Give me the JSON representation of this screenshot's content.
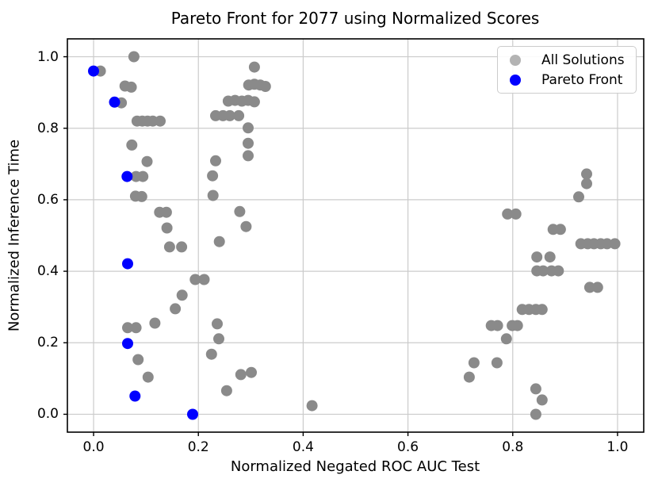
{
  "chart_data": {
    "type": "scatter",
    "title": "Pareto Front for 2077 using Normalized Scores",
    "xlabel": "Normalized Negated ROC AUC Test",
    "ylabel": "Normalized Inference Time",
    "xlim": [
      -0.05,
      1.05
    ],
    "ylim": [
      -0.05,
      1.05
    ],
    "xticks": [
      0.0,
      0.2,
      0.4,
      0.6,
      0.8,
      1.0
    ],
    "yticks": [
      0.0,
      0.2,
      0.4,
      0.6,
      0.8,
      1.0
    ],
    "grid": true,
    "grid_color": "#cbcbcb",
    "spine_color": "#000000",
    "background": "#ffffff",
    "marker_radius_px": 7,
    "legend": {
      "position": "upper right",
      "items": [
        {
          "label": "All Solutions",
          "marker_color": "#b3b3b3"
        },
        {
          "label": "Pareto Front",
          "marker_color": "#0000ff"
        }
      ]
    },
    "series": [
      {
        "name": "All Solutions",
        "color": "#8a8a8a",
        "points": [
          [
            0.077,
            1.0
          ],
          [
            0.013,
            0.96
          ],
          [
            0.06,
            0.918
          ],
          [
            0.072,
            0.915
          ],
          [
            0.053,
            0.871
          ],
          [
            0.083,
            0.82
          ],
          [
            0.093,
            0.82
          ],
          [
            0.103,
            0.82
          ],
          [
            0.113,
            0.82
          ],
          [
            0.127,
            0.82
          ],
          [
            0.073,
            0.753
          ],
          [
            0.102,
            0.707
          ],
          [
            0.081,
            0.665
          ],
          [
            0.094,
            0.665
          ],
          [
            0.08,
            0.61
          ],
          [
            0.092,
            0.609
          ],
          [
            0.126,
            0.565
          ],
          [
            0.139,
            0.565
          ],
          [
            0.14,
            0.521
          ],
          [
            0.145,
            0.468
          ],
          [
            0.168,
            0.468
          ],
          [
            0.194,
            0.377
          ],
          [
            0.211,
            0.377
          ],
          [
            0.169,
            0.333
          ],
          [
            0.156,
            0.295
          ],
          [
            0.117,
            0.255
          ],
          [
            0.065,
            0.242
          ],
          [
            0.081,
            0.242
          ],
          [
            0.085,
            0.153
          ],
          [
            0.104,
            0.104
          ],
          [
            0.307,
            0.971
          ],
          [
            0.296,
            0.921
          ],
          [
            0.307,
            0.923
          ],
          [
            0.318,
            0.921
          ],
          [
            0.328,
            0.917
          ],
          [
            0.257,
            0.876
          ],
          [
            0.27,
            0.878
          ],
          [
            0.283,
            0.876
          ],
          [
            0.295,
            0.878
          ],
          [
            0.307,
            0.874
          ],
          [
            0.233,
            0.835
          ],
          [
            0.247,
            0.835
          ],
          [
            0.26,
            0.835
          ],
          [
            0.277,
            0.835
          ],
          [
            0.295,
            0.801
          ],
          [
            0.295,
            0.758
          ],
          [
            0.295,
            0.723
          ],
          [
            0.233,
            0.709
          ],
          [
            0.227,
            0.667
          ],
          [
            0.228,
            0.612
          ],
          [
            0.279,
            0.567
          ],
          [
            0.291,
            0.525
          ],
          [
            0.24,
            0.483
          ],
          [
            0.236,
            0.253
          ],
          [
            0.239,
            0.211
          ],
          [
            0.225,
            0.168
          ],
          [
            0.281,
            0.111
          ],
          [
            0.301,
            0.117
          ],
          [
            0.254,
            0.066
          ],
          [
            0.417,
            0.024
          ],
          [
            0.941,
            0.672
          ],
          [
            0.941,
            0.645
          ],
          [
            0.926,
            0.608
          ],
          [
            0.79,
            0.56
          ],
          [
            0.806,
            0.56
          ],
          [
            0.877,
            0.517
          ],
          [
            0.891,
            0.517
          ],
          [
            0.93,
            0.477
          ],
          [
            0.943,
            0.477
          ],
          [
            0.955,
            0.477
          ],
          [
            0.968,
            0.477
          ],
          [
            0.98,
            0.477
          ],
          [
            0.995,
            0.477
          ],
          [
            0.846,
            0.44
          ],
          [
            0.871,
            0.44
          ],
          [
            0.846,
            0.401
          ],
          [
            0.858,
            0.401
          ],
          [
            0.874,
            0.401
          ],
          [
            0.887,
            0.401
          ],
          [
            0.947,
            0.355
          ],
          [
            0.962,
            0.355
          ],
          [
            0.818,
            0.293
          ],
          [
            0.831,
            0.293
          ],
          [
            0.844,
            0.293
          ],
          [
            0.856,
            0.293
          ],
          [
            0.759,
            0.248
          ],
          [
            0.771,
            0.248
          ],
          [
            0.799,
            0.248
          ],
          [
            0.809,
            0.248
          ],
          [
            0.788,
            0.211
          ],
          [
            0.726,
            0.144
          ],
          [
            0.77,
            0.144
          ],
          [
            0.717,
            0.104
          ],
          [
            0.844,
            0.071
          ],
          [
            0.856,
            0.04
          ],
          [
            0.844,
            0.0
          ]
        ]
      },
      {
        "name": "Pareto Front",
        "color": "#0000ff",
        "points": [
          [
            0.0,
            0.96
          ],
          [
            0.04,
            0.873
          ],
          [
            0.064,
            0.665
          ],
          [
            0.065,
            0.421
          ],
          [
            0.065,
            0.198
          ],
          [
            0.079,
            0.051
          ],
          [
            0.189,
            0.0
          ]
        ]
      }
    ]
  }
}
